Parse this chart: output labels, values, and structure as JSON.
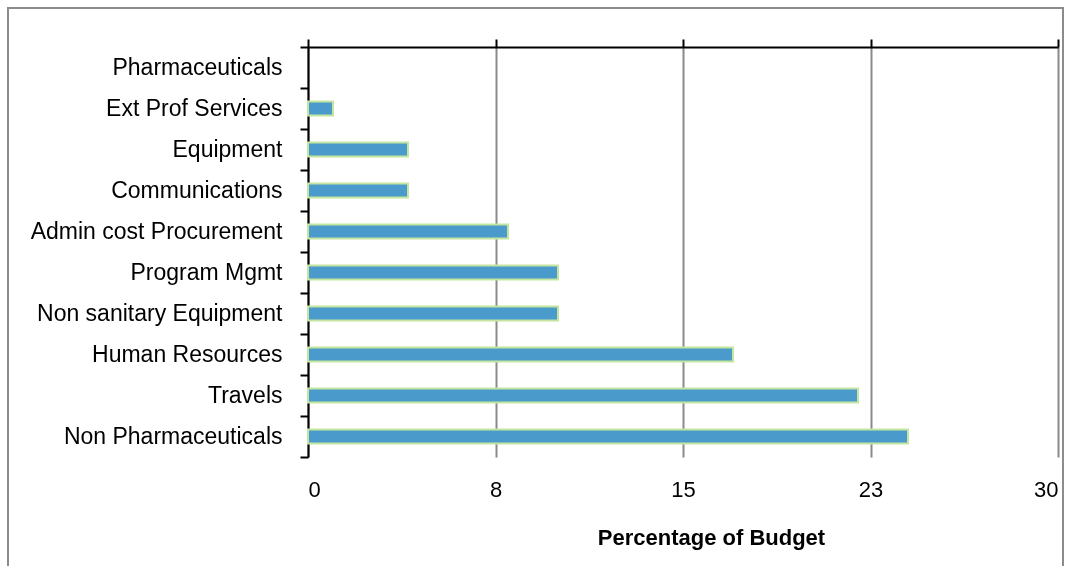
{
  "chart_data": {
    "type": "bar",
    "orientation": "horizontal",
    "xlabel": "Percentage of Budget",
    "categories": [
      "Pharmaceuticals",
      "Ext Prof Services",
      "Equipment",
      "Communications",
      "Admin cost Procurement",
      "Program Mgmt",
      "Non sanitary Equipment",
      "Human Resources",
      "Travels",
      "Non Pharmaceuticals"
    ],
    "values": [
      0,
      1,
      4,
      4,
      8,
      10,
      10,
      17,
      22,
      24
    ],
    "color": "#4a9bcb",
    "xlim": [
      0,
      30
    ],
    "xticks": [
      0,
      {
        "value": 7.5,
        "label": "8"
      },
      15,
      {
        "value": 22.5,
        "label": "23"
      },
      30
    ],
    "grid": "x"
  }
}
